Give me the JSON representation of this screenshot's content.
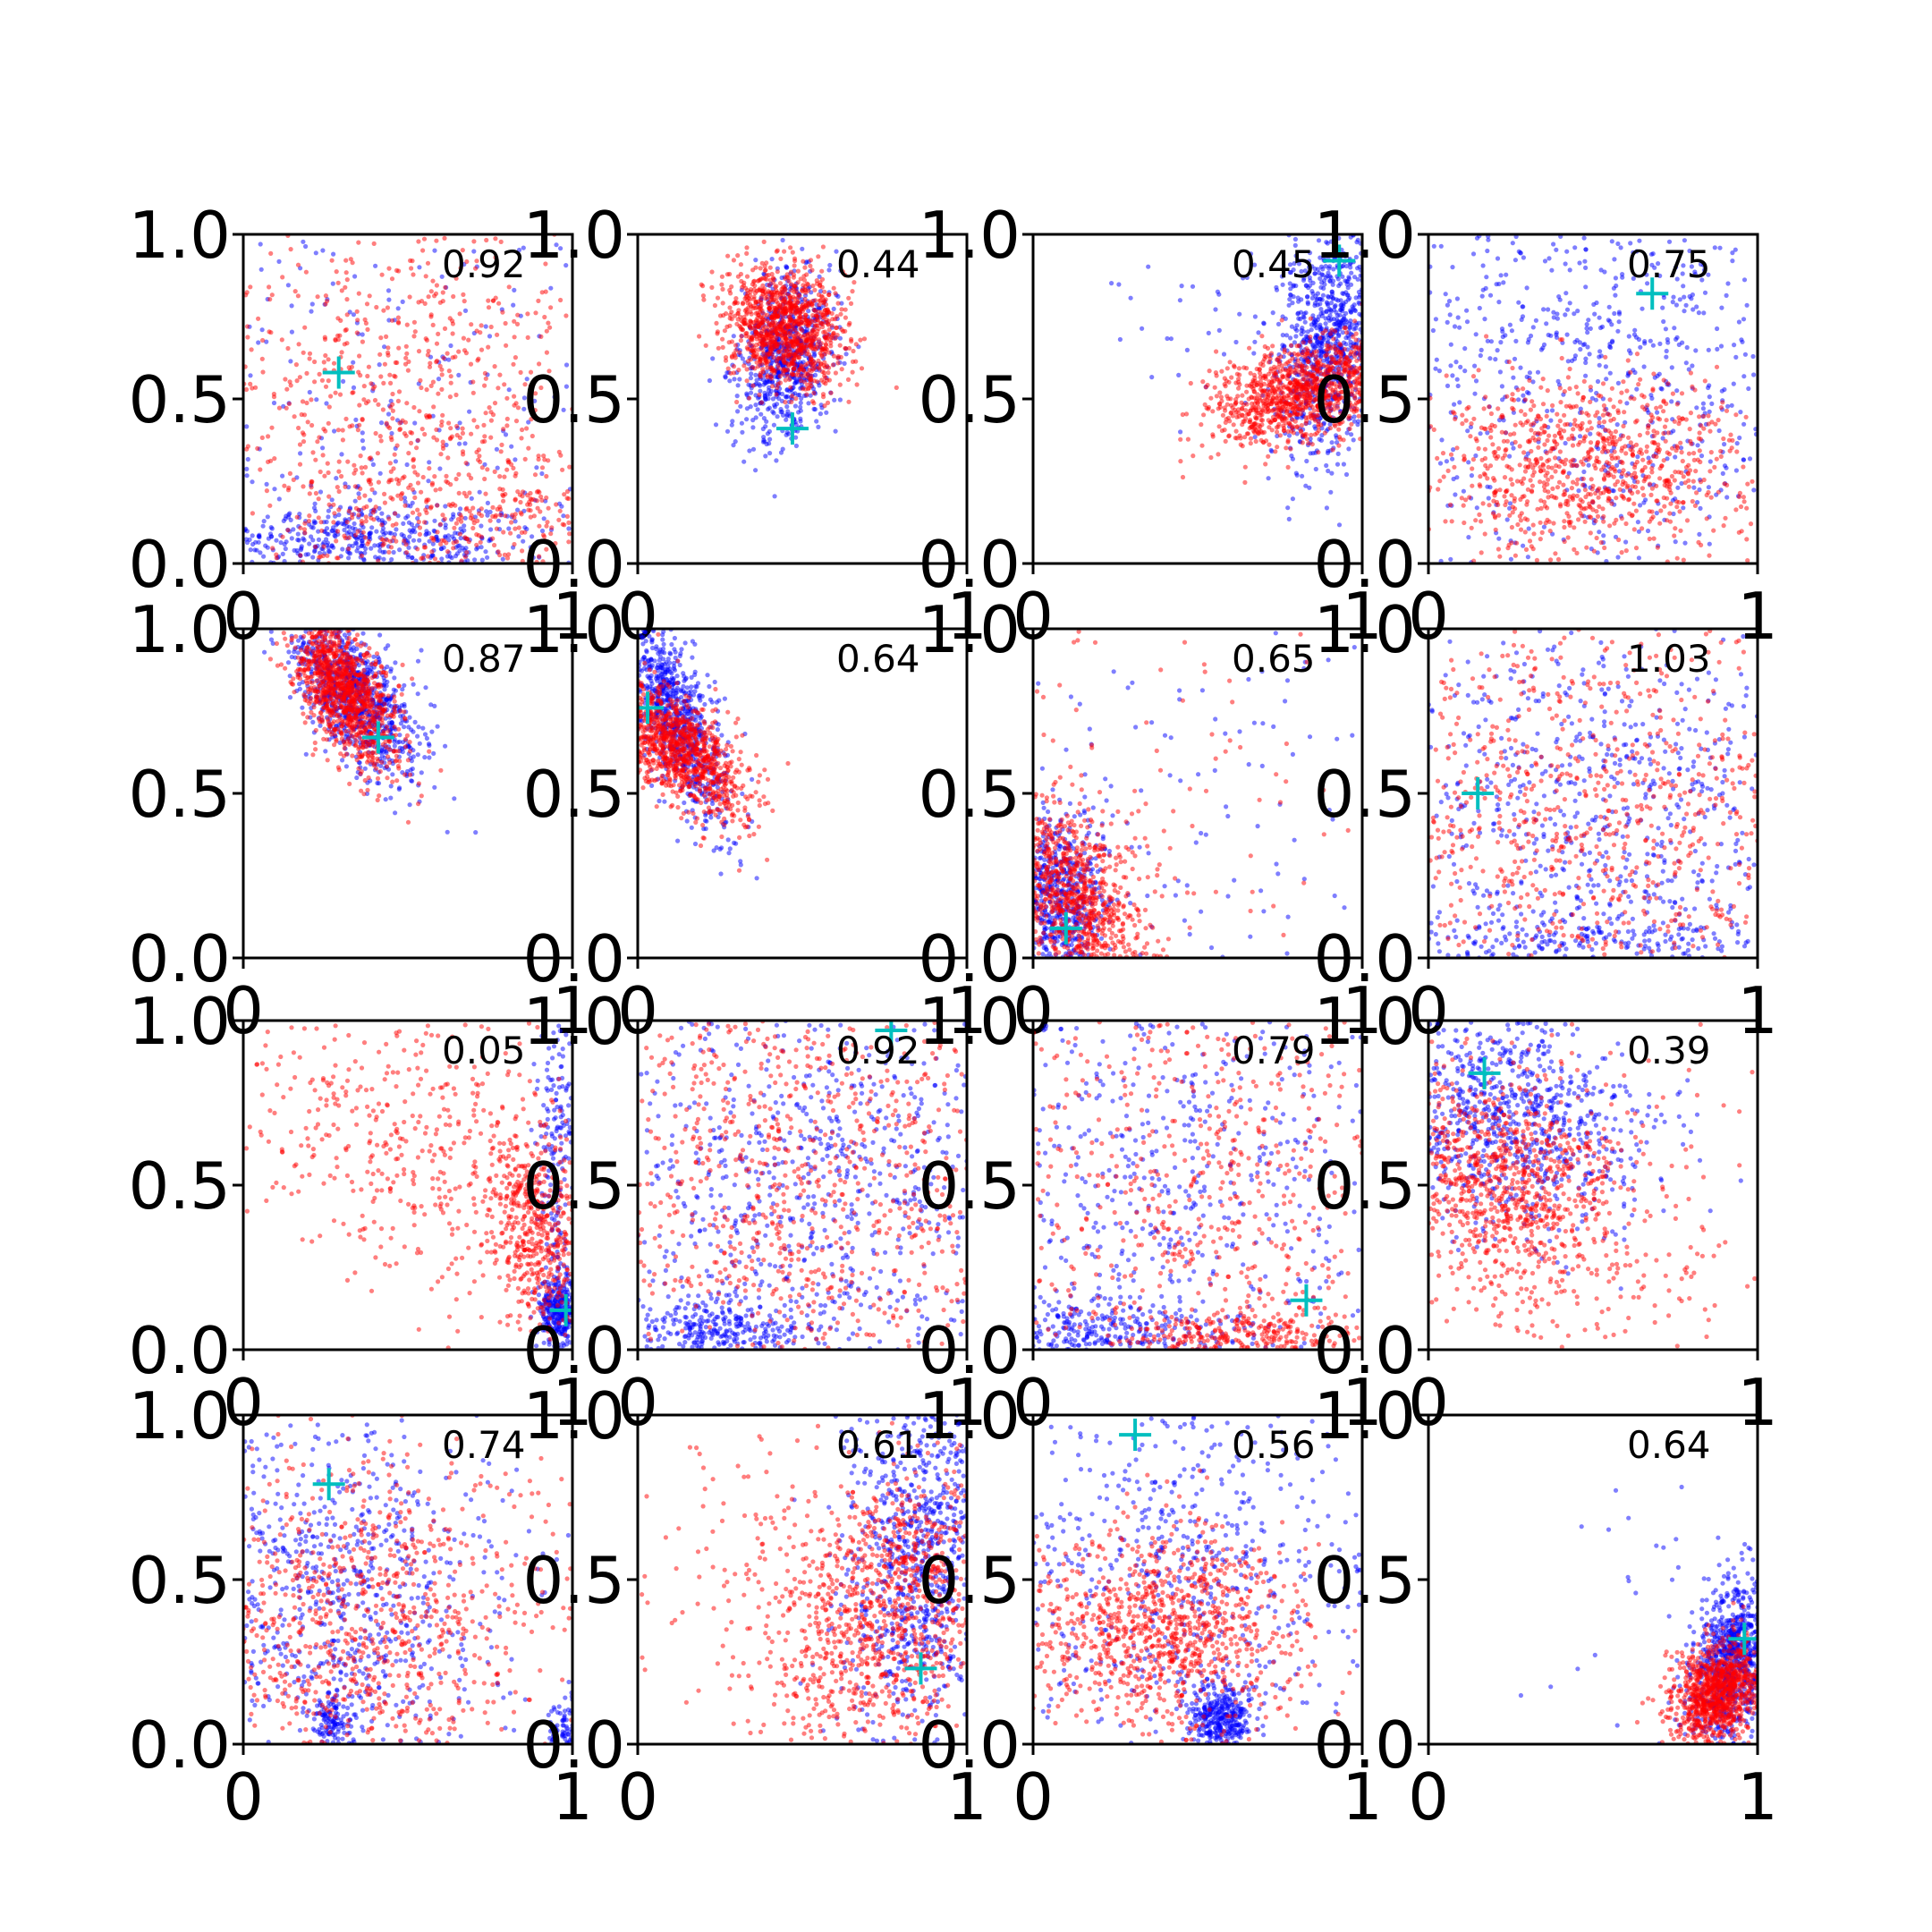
{
  "colors": {
    "series_a": "#0000ff",
    "series_b": "#ff0000",
    "marker": "#00bfbf",
    "axes": "#000000"
  },
  "chart_data": {
    "type": "scatter",
    "grid": false,
    "rows": 4,
    "cols": 4,
    "xlim": [
      0,
      1
    ],
    "ylim": [
      0,
      1
    ],
    "x_tick_labels": [
      "0",
      "1"
    ],
    "y_tick_labels": [
      "0.0",
      "0.5",
      "1.0"
    ],
    "panels": [
      {
        "label": "0.92",
        "marker": [
          0.29,
          0.58
        ],
        "blue": [
          {
            "cx": 0.35,
            "cy": 0.08,
            "sx": 0.3,
            "sy": 0.06,
            "n": 500,
            "rho": 0
          },
          {
            "cx": 0.5,
            "cy": 0.5,
            "sx": 0.45,
            "sy": 0.4,
            "n": 350,
            "rho": 0
          }
        ],
        "red": [
          {
            "cx": 0.5,
            "cy": 0.45,
            "sx": 0.4,
            "sy": 0.35,
            "n": 1000,
            "rho": 0
          },
          {
            "cx": 0.6,
            "cy": 0.12,
            "sx": 0.3,
            "sy": 0.08,
            "n": 200,
            "rho": 0
          }
        ]
      },
      {
        "label": "0.44",
        "marker": [
          0.47,
          0.41
        ],
        "blue": [
          {
            "cx": 0.45,
            "cy": 0.63,
            "sx": 0.07,
            "sy": 0.13,
            "n": 700,
            "rho": 0.2
          }
        ],
        "red": [
          {
            "cx": 0.45,
            "cy": 0.72,
            "sx": 0.09,
            "sy": 0.09,
            "n": 1100,
            "rho": -0.2
          }
        ]
      },
      {
        "label": "0.45",
        "marker": [
          0.93,
          0.92
        ],
        "blue": [
          {
            "cx": 0.9,
            "cy": 0.68,
            "sx": 0.08,
            "sy": 0.18,
            "n": 900,
            "rho": 0.3
          },
          {
            "cx": 0.6,
            "cy": 0.7,
            "sx": 0.2,
            "sy": 0.15,
            "n": 40,
            "rho": 0
          }
        ],
        "red": [
          {
            "cx": 0.82,
            "cy": 0.52,
            "sx": 0.14,
            "sy": 0.08,
            "n": 1100,
            "rho": 0.4
          }
        ]
      },
      {
        "label": "0.75",
        "marker": [
          0.68,
          0.82
        ],
        "blue": [
          {
            "cx": 0.5,
            "cy": 0.6,
            "sx": 0.4,
            "sy": 0.35,
            "n": 900,
            "rho": 0
          }
        ],
        "red": [
          {
            "cx": 0.48,
            "cy": 0.3,
            "sx": 0.25,
            "sy": 0.13,
            "n": 900,
            "rho": 0
          }
        ]
      },
      {
        "label": "0.87",
        "marker": [
          0.41,
          0.67
        ],
        "blue": [
          {
            "cx": 0.33,
            "cy": 0.8,
            "sx": 0.1,
            "sy": 0.12,
            "n": 900,
            "rho": -0.6
          }
        ],
        "red": [
          {
            "cx": 0.3,
            "cy": 0.82,
            "sx": 0.08,
            "sy": 0.12,
            "n": 1100,
            "rho": -0.6
          }
        ]
      },
      {
        "label": "0.64",
        "marker": [
          0.03,
          0.76
        ],
        "blue": [
          {
            "cx": 0.12,
            "cy": 0.72,
            "sx": 0.08,
            "sy": 0.16,
            "n": 800,
            "rho": -0.7
          }
        ],
        "red": [
          {
            "cx": 0.13,
            "cy": 0.63,
            "sx": 0.1,
            "sy": 0.1,
            "n": 1000,
            "rho": -0.6
          }
        ]
      },
      {
        "label": "0.65",
        "marker": [
          0.1,
          0.09
        ],
        "blue": [
          {
            "cx": 0.08,
            "cy": 0.18,
            "sx": 0.07,
            "sy": 0.12,
            "n": 600,
            "rho": 0
          },
          {
            "cx": 0.5,
            "cy": 0.5,
            "sx": 0.4,
            "sy": 0.4,
            "n": 150,
            "rho": 0
          }
        ],
        "red": [
          {
            "cx": 0.12,
            "cy": 0.16,
            "sx": 0.11,
            "sy": 0.15,
            "n": 1000,
            "rho": -0.4
          },
          {
            "cx": 0.4,
            "cy": 0.5,
            "sx": 0.35,
            "sy": 0.35,
            "n": 100,
            "rho": 0
          }
        ]
      },
      {
        "label": "1.03",
        "marker": [
          0.15,
          0.5
        ],
        "blue": [
          {
            "cx": 0.5,
            "cy": 0.4,
            "sx": 0.4,
            "sy": 0.35,
            "n": 900,
            "rho": 0
          },
          {
            "cx": 0.5,
            "cy": 0.05,
            "sx": 0.35,
            "sy": 0.04,
            "n": 200,
            "rho": 0
          }
        ],
        "red": [
          {
            "cx": 0.5,
            "cy": 0.42,
            "sx": 0.4,
            "sy": 0.35,
            "n": 1000,
            "rho": 0
          }
        ]
      },
      {
        "label": "0.05",
        "marker": [
          0.98,
          0.12
        ],
        "blue": [
          {
            "cx": 0.96,
            "cy": 0.12,
            "sx": 0.03,
            "sy": 0.05,
            "n": 300,
            "rho": 0
          },
          {
            "cx": 0.95,
            "cy": 0.6,
            "sx": 0.03,
            "sy": 0.3,
            "n": 200,
            "rho": 0
          }
        ],
        "red": [
          {
            "cx": 0.9,
            "cy": 0.35,
            "sx": 0.08,
            "sy": 0.15,
            "n": 500,
            "rho": -0.3
          },
          {
            "cx": 0.5,
            "cy": 0.6,
            "sx": 0.3,
            "sy": 0.25,
            "n": 500,
            "rho": -0.3
          }
        ]
      },
      {
        "label": "0.92",
        "marker": [
          0.77,
          0.97
        ],
        "blue": [
          {
            "cx": 0.5,
            "cy": 0.5,
            "sx": 0.4,
            "sy": 0.4,
            "n": 1000,
            "rho": 0
          },
          {
            "cx": 0.25,
            "cy": 0.06,
            "sx": 0.15,
            "sy": 0.05,
            "n": 300,
            "rho": 0
          }
        ],
        "red": [
          {
            "cx": 0.5,
            "cy": 0.5,
            "sx": 0.4,
            "sy": 0.4,
            "n": 1100,
            "rho": 0
          }
        ]
      },
      {
        "label": "0.79",
        "marker": [
          0.83,
          0.15
        ],
        "blue": [
          {
            "cx": 0.4,
            "cy": 0.45,
            "sx": 0.4,
            "sy": 0.4,
            "n": 800,
            "rho": 0
          },
          {
            "cx": 0.2,
            "cy": 0.05,
            "sx": 0.2,
            "sy": 0.05,
            "n": 300,
            "rho": 0
          }
        ],
        "red": [
          {
            "cx": 0.5,
            "cy": 0.5,
            "sx": 0.4,
            "sy": 0.38,
            "n": 800,
            "rho": 0
          },
          {
            "cx": 0.65,
            "cy": 0.04,
            "sx": 0.2,
            "sy": 0.04,
            "n": 300,
            "rho": 0
          }
        ]
      },
      {
        "label": "0.39",
        "marker": [
          0.17,
          0.84
        ],
        "blue": [
          {
            "cx": 0.25,
            "cy": 0.72,
            "sx": 0.2,
            "sy": 0.18,
            "n": 900,
            "rho": -0.2
          }
        ],
        "red": [
          {
            "cx": 0.22,
            "cy": 0.5,
            "sx": 0.18,
            "sy": 0.18,
            "n": 900,
            "rho": -0.2
          },
          {
            "cx": 0.5,
            "cy": 0.4,
            "sx": 0.3,
            "sy": 0.25,
            "n": 200,
            "rho": 0
          }
        ]
      },
      {
        "label": "0.74",
        "marker": [
          0.26,
          0.79
        ],
        "blue": [
          {
            "cx": 0.3,
            "cy": 0.45,
            "sx": 0.25,
            "sy": 0.3,
            "n": 800,
            "rho": 0
          },
          {
            "cx": 0.27,
            "cy": 0.07,
            "sx": 0.03,
            "sy": 0.04,
            "n": 120,
            "rho": 0
          },
          {
            "cx": 0.98,
            "cy": 0.05,
            "sx": 0.03,
            "sy": 0.05,
            "n": 100,
            "rho": 0
          }
        ],
        "red": [
          {
            "cx": 0.35,
            "cy": 0.35,
            "sx": 0.3,
            "sy": 0.28,
            "n": 1000,
            "rho": 0
          }
        ]
      },
      {
        "label": "0.61",
        "marker": [
          0.86,
          0.23
        ],
        "blue": [
          {
            "cx": 0.86,
            "cy": 0.6,
            "sx": 0.12,
            "sy": 0.3,
            "n": 900,
            "rho": 0.2
          }
        ],
        "red": [
          {
            "cx": 0.75,
            "cy": 0.4,
            "sx": 0.18,
            "sy": 0.22,
            "n": 1000,
            "rho": 0.3
          },
          {
            "cx": 0.4,
            "cy": 0.6,
            "sx": 0.3,
            "sy": 0.25,
            "n": 150,
            "rho": 0
          }
        ]
      },
      {
        "label": "0.56",
        "marker": [
          0.31,
          0.94
        ],
        "blue": [
          {
            "cx": 0.45,
            "cy": 0.55,
            "sx": 0.35,
            "sy": 0.3,
            "n": 700,
            "rho": 0
          },
          {
            "cx": 0.57,
            "cy": 0.08,
            "sx": 0.05,
            "sy": 0.05,
            "n": 350,
            "rho": 0
          }
        ],
        "red": [
          {
            "cx": 0.38,
            "cy": 0.35,
            "sx": 0.22,
            "sy": 0.15,
            "n": 1000,
            "rho": 0
          }
        ]
      },
      {
        "label": "0.64",
        "marker": [
          0.96,
          0.32
        ],
        "blue": [
          {
            "cx": 0.92,
            "cy": 0.25,
            "sx": 0.06,
            "sy": 0.12,
            "n": 900,
            "rho": 0.3
          },
          {
            "cx": 0.6,
            "cy": 0.4,
            "sx": 0.2,
            "sy": 0.25,
            "n": 25,
            "rho": 0
          }
        ],
        "red": [
          {
            "cx": 0.88,
            "cy": 0.16,
            "sx": 0.07,
            "sy": 0.08,
            "n": 1000,
            "rho": 0.3
          }
        ]
      }
    ]
  }
}
